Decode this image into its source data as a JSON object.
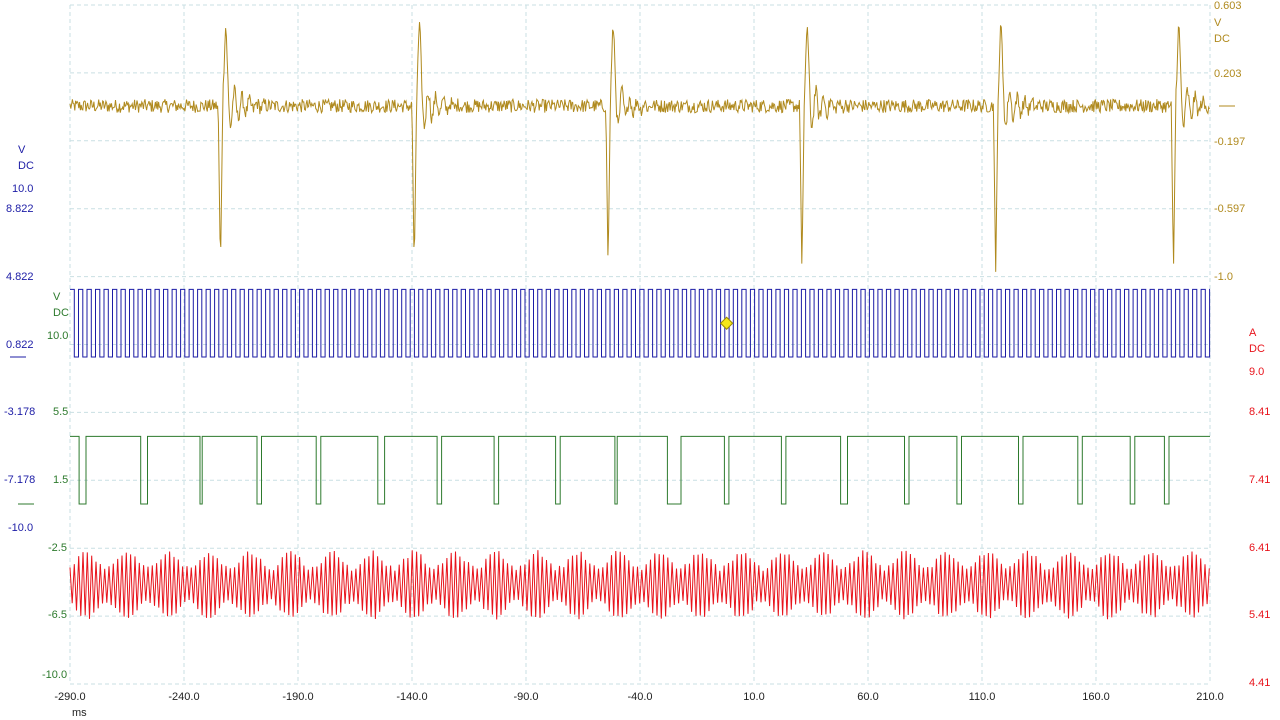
{
  "chart_data": {
    "type": "line",
    "title": "",
    "x": {
      "unit": "ms",
      "range": [
        -290.0,
        210.0
      ],
      "ticks": [
        "-290.0",
        "-240.0",
        "-190.0",
        "-140.0",
        "-90.0",
        "-40.0",
        "10.0",
        "60.0",
        "110.0",
        "160.0",
        "210.0"
      ]
    },
    "grid": true,
    "series": [
      {
        "channel": "gold",
        "color": "#b08a1e",
        "unit_label": "V",
        "coupling_label": "DC",
        "axis_side": "right",
        "ticks": [
          "0.603",
          "0.203",
          "-0.197",
          "-0.597",
          "-1.0"
        ],
        "baseline": 0.0,
        "spikes_ms": [
          -222,
          -137,
          -52,
          33,
          118,
          196
        ],
        "spike_peak": 0.42,
        "spike_trough": -0.98,
        "noise": 0.04
      },
      {
        "channel": "blue",
        "color": "#1c1ca6",
        "unit_label": "V",
        "coupling_label": "DC",
        "axis_side": "left",
        "ticks": [
          "10.0",
          "8.822",
          "4.822",
          "0.822",
          "-3.178",
          "-7.178",
          "-10.0"
        ],
        "waveform": "square",
        "high": 4.822,
        "low": 0.822,
        "period_ms": 3.73
      },
      {
        "channel": "green",
        "color": "#2d7a2d",
        "unit_label": "V",
        "coupling_label": "DC",
        "axis_side": "left",
        "ticks": [
          "10.0",
          "5.5",
          "1.5",
          "-2.5",
          "-6.5",
          "-10.0"
        ],
        "waveform": "pulse",
        "high": 5.5,
        "low": 1.5,
        "pulses_ms": [
          [
            -286,
            -283
          ],
          [
            -259,
            -256
          ],
          [
            -233,
            -232
          ],
          [
            -208,
            -206
          ],
          [
            -182,
            -180
          ],
          [
            -155,
            -152
          ],
          [
            -129,
            -127
          ],
          [
            -104,
            -102
          ],
          [
            -77,
            -75
          ],
          [
            -51,
            -50
          ],
          [
            -28,
            -22
          ],
          [
            -3,
            -1
          ],
          [
            22,
            24
          ],
          [
            48,
            51
          ],
          [
            76,
            78
          ],
          [
            99,
            101
          ],
          [
            126,
            128
          ],
          [
            152,
            154
          ],
          [
            175,
            177
          ],
          [
            190,
            192
          ]
        ]
      },
      {
        "channel": "red",
        "color": "#e8141c",
        "unit_label": "A",
        "coupling_label": "DC",
        "axis_side": "right",
        "ticks": [
          "9.0",
          "8.41",
          "7.41",
          "6.41",
          "5.41",
          "4.41"
        ],
        "waveform": "oscillation",
        "center": 5.91,
        "amplitude": 0.48,
        "period_ms": 1.9
      }
    ],
    "markers": [
      {
        "shape": "diamond",
        "color": "#f4e61a",
        "x_ms": -2.0,
        "channel": "blue",
        "value": 2.82
      }
    ]
  }
}
